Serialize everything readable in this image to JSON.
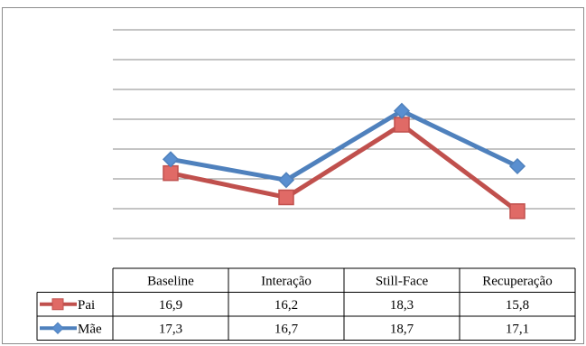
{
  "chart_data": {
    "type": "line",
    "categories": [
      "Baseline",
      "Interação",
      "Still-Face",
      "Recuperação"
    ],
    "series": [
      {
        "name": "Pai",
        "values": [
          16.9,
          16.2,
          18.3,
          15.8
        ],
        "color": "#c0504d",
        "marker": "square"
      },
      {
        "name": "Mãe",
        "values": [
          17.3,
          16.7,
          18.7,
          17.1
        ],
        "color": "#4f81bd",
        "marker": "diamond"
      }
    ],
    "grid": true,
    "legend": "data-table-left",
    "gridline_count": 8
  }
}
